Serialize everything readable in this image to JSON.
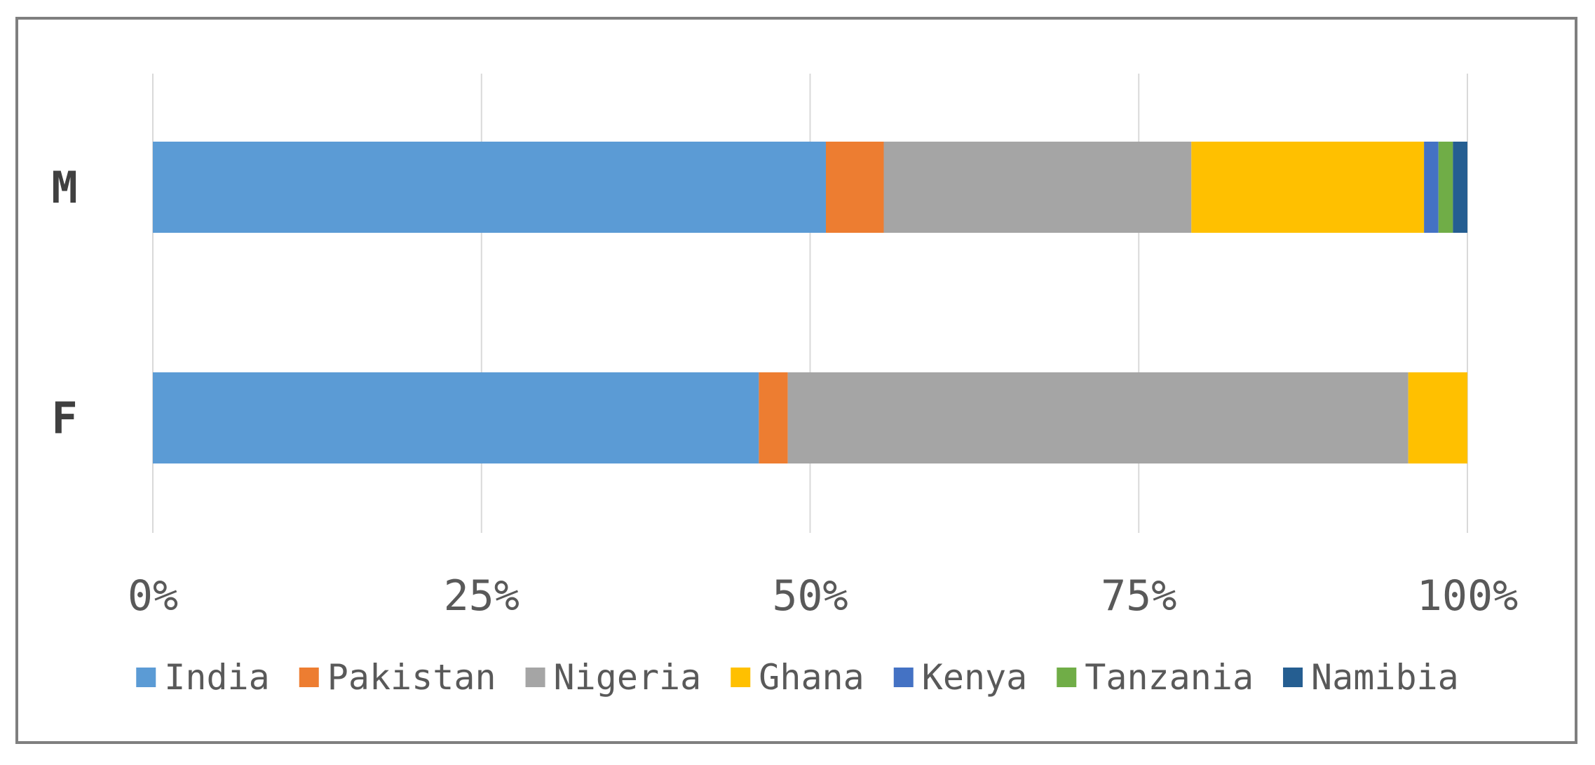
{
  "chart_data": {
    "type": "bar",
    "orientation": "horizontal",
    "stacked": "percent",
    "categories": [
      "M",
      "F"
    ],
    "series": [
      {
        "name": "India",
        "color": "#5b9bd5",
        "values": [
          51.2,
          46.1
        ]
      },
      {
        "name": "Pakistan",
        "color": "#ed7d31",
        "values": [
          4.4,
          2.2
        ]
      },
      {
        "name": "Nigeria",
        "color": "#a5a5a5",
        "values": [
          23.4,
          47.2
        ]
      },
      {
        "name": "Ghana",
        "color": "#ffc000",
        "values": [
          17.7,
          4.5
        ]
      },
      {
        "name": "Kenya",
        "color": "#4472c4",
        "values": [
          1.1,
          0
        ]
      },
      {
        "name": "Tanzania",
        "color": "#70ad47",
        "values": [
          1.1,
          0
        ]
      },
      {
        "name": "Namibia",
        "color": "#255e91",
        "values": [
          1.1,
          0
        ]
      }
    ],
    "x_ticks": [
      "0%",
      "25%",
      "50%",
      "75%",
      "100%"
    ],
    "xlim": [
      0,
      100
    ],
    "grid": true,
    "legend_position": "bottom",
    "title": "",
    "xlabel": "",
    "ylabel": ""
  }
}
